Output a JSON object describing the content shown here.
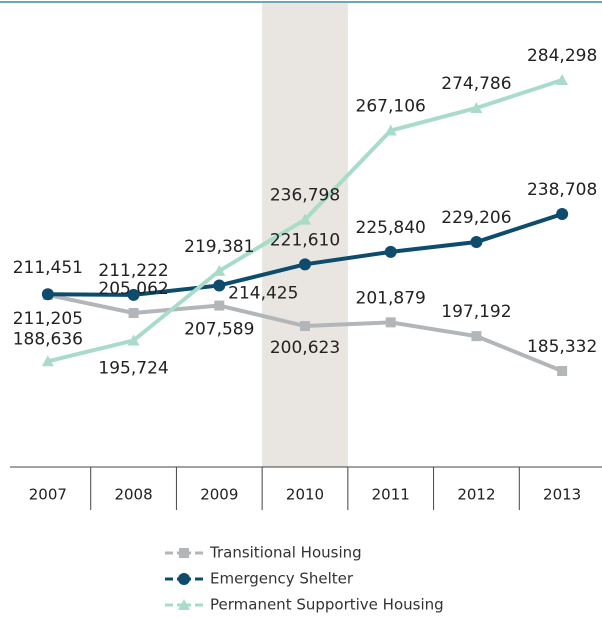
{
  "chart_data": {
    "type": "line",
    "categories": [
      "2007",
      "2008",
      "2009",
      "2010",
      "2011",
      "2012",
      "2013"
    ],
    "highlight": "2010",
    "series": [
      {
        "name": "Transitional Housing",
        "color": "#b3b6b9",
        "marker": "square",
        "values": [
          211205,
          205062,
          207589,
          200623,
          201879,
          197192,
          185332
        ],
        "value_labels": [
          "211,205",
          "205,062",
          "207,589",
          "200,623",
          "201,879",
          "197,192",
          "185,332"
        ]
      },
      {
        "name": "Emergency Shelter",
        "color": "#0e4c6e",
        "marker": "circle",
        "values": [
          211451,
          211222,
          214425,
          221610,
          225840,
          229206,
          238708
        ],
        "value_labels": [
          "211,451",
          "211,222",
          "214,425",
          "221,610",
          "225,840",
          "229,206",
          "238,708"
        ]
      },
      {
        "name": "Permanent Supportive Housing",
        "color": "#a8dcc8",
        "marker": "triangle",
        "values": [
          188636,
          195724,
          219381,
          236798,
          267106,
          274786,
          284298
        ],
        "value_labels": [
          "188,636",
          "195,724",
          "219,381",
          "236,798",
          "267,106",
          "274,786",
          "284,298"
        ]
      }
    ]
  }
}
